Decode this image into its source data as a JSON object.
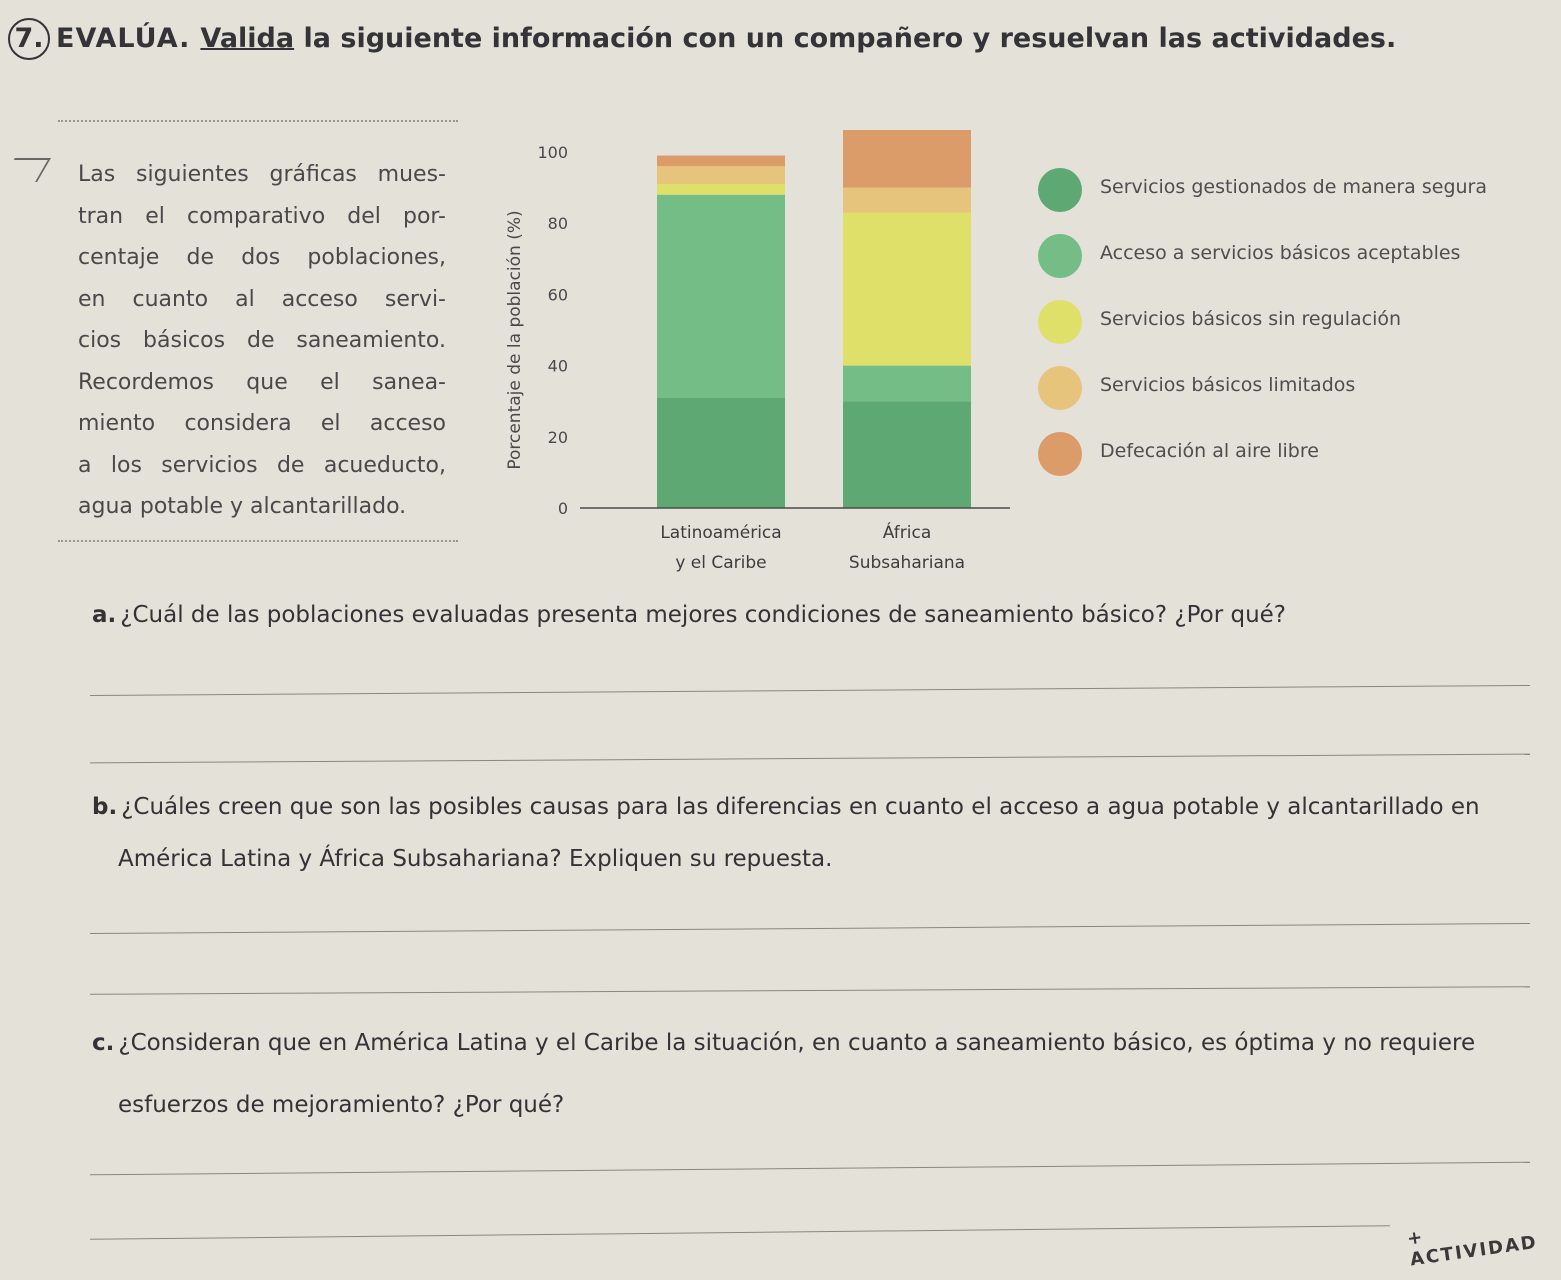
{
  "header": {
    "number": "7.",
    "title": "EVALÚA.",
    "instruction_underlined": "Valida",
    "instruction_rest": "la siguiente información con un compañero y resuelvan las actividades."
  },
  "info_box": {
    "lines": [
      "Las siguientes gráficas mues-",
      "tran el comparativo del por-",
      "centaje de dos poblaciones,",
      "en cuanto al acceso servi-",
      "cios básicos de saneamiento.",
      "Recordemos que el sanea-",
      "miento considera el acceso",
      "a los servicios de acueducto,",
      "agua potable y alcantarillado."
    ]
  },
  "chart_data": {
    "type": "bar",
    "stacked": true,
    "ylabel": "Porcentaje de la población (%)",
    "ylim": [
      0,
      100
    ],
    "yticks": [
      0,
      20,
      40,
      60,
      80,
      100
    ],
    "categories": [
      [
        "Latinoamérica",
        "y el Caribe"
      ],
      [
        "África",
        "Subsahariana"
      ]
    ],
    "series": [
      {
        "name": "Servicios gestionados de manera segura",
        "color": "#5ea874",
        "values": [
          31,
          30
        ]
      },
      {
        "name": "Acceso a servicios básicos aceptables",
        "color": "#74bd86",
        "values": [
          57,
          10
        ]
      },
      {
        "name": "Servicios básicos sin regulación",
        "color": "#dfe06a",
        "values": [
          3,
          43
        ]
      },
      {
        "name": "Servicios básicos limitados",
        "color": "#e7c47c",
        "values": [
          5,
          7
        ]
      },
      {
        "name": "Defecación al aire libre",
        "color": "#dc9c69",
        "values": [
          3,
          19
        ]
      }
    ],
    "legend_position": "right",
    "grid": false
  },
  "questions": [
    {
      "letter": "a.",
      "lines": [
        "¿Cuál de las poblaciones evaluadas presenta mejores condiciones de saneamiento básico? ¿Por qué?"
      ]
    },
    {
      "letter": "b.",
      "lines": [
        "¿Cuáles creen que son las posibles causas para las diferencias en cuanto el acceso a agua potable y alcantarillado en",
        "América Latina y África Subsahariana? Expliquen su repuesta."
      ]
    },
    {
      "letter": "c.",
      "lines": [
        "¿Consideran que en América Latina y el Caribe la situación, en cuanto a saneamiento básico, es óptima y no requiere",
        "esfuerzos de mejoramiento? ¿Por qué?"
      ]
    }
  ],
  "stamp": "+ ACTIVIDAD"
}
